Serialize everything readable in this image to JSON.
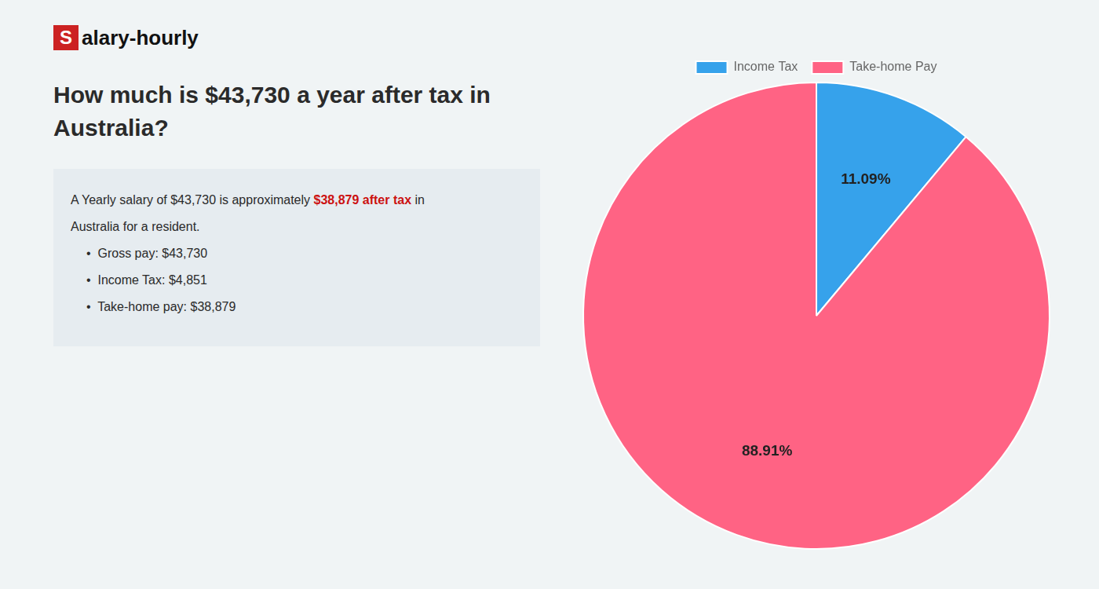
{
  "chart_data": {
    "type": "pie",
    "title": "How much is $43,730 a year after tax in\nAustralia?",
    "categories": [
      "Income Tax",
      "Take-home Pay"
    ],
    "values": [
      11.09,
      88.91
    ],
    "value_labels": [
      "11.09%",
      "88.91%"
    ],
    "data_labels": true,
    "legend": "top",
    "annotations": [
      [
        {
          "text": "S",
          "color": "#cc2222"
        },
        {
          "text": "alary-hourly"
        }
      ],
      [
        {
          "text": "A Yearly salary of $43,730 is approximately "
        },
        {
          "text": "$38,879 after tax",
          "color": "#cc1111"
        },
        {
          "text": " in"
        }
      ],
      [
        {
          "text": "Australia for a resident."
        }
      ],
      [
        {
          "text": "•  Gross pay: $43,730"
        }
      ],
      [
        {
          "text": "•  Income Tax: $4,851"
        }
      ],
      [
        {
          "text": "•  Take-home pay: $38,879"
        }
      ]
    ]
  }
}
